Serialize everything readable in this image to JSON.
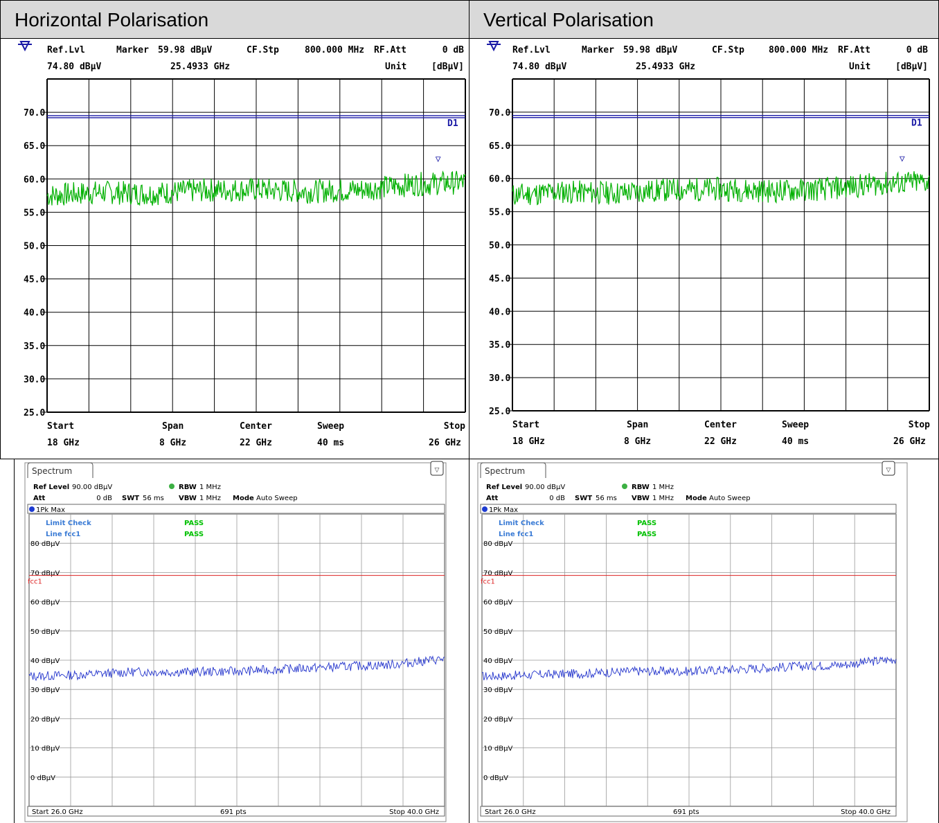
{
  "headers": {
    "left": "Horizontal Polarisation",
    "right": "Vertical Polarisation"
  },
  "upper_panel": {
    "ref_lvl_label": "Ref.Lvl",
    "ref_lvl_value": "74.80 dBµV",
    "marker_label": "Marker",
    "marker_level": "59.98 dBµV",
    "marker_freq": "25.4933 GHz",
    "cf_stp_label": "CF.Stp",
    "cf_stp_value": "800.000 MHz",
    "rf_att_label": "RF.Att",
    "rf_att_value": "0 dB",
    "unit_label": "Unit",
    "unit_value": "[dBµV]",
    "line_label": "D1",
    "marker_symbol": "▽",
    "start_label": "Start",
    "start_value": "18 GHz",
    "span_label": "Span",
    "span_value": "8 GHz",
    "center_label": "Center",
    "center_value": "22 GHz",
    "sweep_label": "Sweep",
    "sweep_value": "40 ms",
    "stop_label": "Stop",
    "stop_value": "26 GHz",
    "y_ticks": [
      "70.0",
      "65.0",
      "60.0",
      "55.0",
      "50.0",
      "45.0",
      "40.0",
      "35.0",
      "30.0",
      "25.0"
    ]
  },
  "lower_panel": {
    "tab_label": "Spectrum",
    "ref_level_label": "Ref Level",
    "ref_level_value": "90.00 dBµV",
    "rbw_label": "RBW",
    "rbw_value": "1 MHz",
    "att_label": "Att",
    "att_value": "0 dB",
    "swt_label": "SWT",
    "swt_value": "56 ms",
    "vbw_label": "VBW",
    "vbw_value": "1 MHz",
    "mode_label": "Mode",
    "mode_value": "Auto Sweep",
    "trace_label": "1Pk Max",
    "limit_check_label": "Limit Check",
    "limit_check_value": "PASS",
    "line_fcc_label": "Line fcc1",
    "line_fcc_value": "PASS",
    "limit_line_label": "fcc1",
    "start": "Start 26.0 GHz",
    "pts": "691 pts",
    "stop": "Stop 40.0 GHz",
    "y_ticks": [
      "80 dBµV",
      "70 dBµV",
      "60 dBµV",
      "50 dBµV",
      "40 dBµV",
      "30 dBµV",
      "20 dBµV",
      "10 dBµV",
      "0 dBµV"
    ]
  },
  "colors": {
    "header_bg": "#d9d9d9",
    "upper_trace": "#00b000",
    "upper_limit": "#1a1aa6",
    "lower_trace": "#2233cc",
    "lower_limit": "#dd2222",
    "pass": "#00c000",
    "info_blue": "#3a7bd5"
  },
  "chart_data": [
    {
      "type": "line",
      "panel": "Horizontal Polarisation 18-26 GHz",
      "x_range_ghz": [
        18,
        26
      ],
      "ylim": [
        25,
        75
      ],
      "ylabel": "dBµV",
      "limit_line_dbuv": 69.5,
      "marker": {
        "x_ghz": 25.4933,
        "y_dbuv": 59.98
      },
      "series": [
        {
          "x": [
            18,
            19,
            20,
            21,
            22,
            23,
            24,
            25,
            26
          ],
          "values": [
            57.5,
            58.0,
            57.8,
            58.3,
            58.4,
            58.1,
            58.4,
            59.2,
            59.5
          ]
        }
      ]
    },
    {
      "type": "line",
      "panel": "Vertical Polarisation 18-26 GHz",
      "x_range_ghz": [
        18,
        26
      ],
      "ylim": [
        25,
        75
      ],
      "ylabel": "dBµV",
      "limit_line_dbuv": 69.5,
      "marker": {
        "x_ghz": 25.4933,
        "y_dbuv": 59.98
      },
      "series": [
        {
          "x": [
            18,
            19,
            20,
            21,
            22,
            23,
            24,
            25,
            26
          ],
          "values": [
            57.5,
            58.0,
            57.8,
            58.3,
            58.4,
            58.1,
            58.4,
            59.2,
            59.5
          ]
        }
      ]
    },
    {
      "type": "line",
      "panel": "Horizontal Polarisation 26-40 GHz",
      "x_range_ghz": [
        26,
        40
      ],
      "ylim": [
        -10,
        90
      ],
      "ylabel": "dBµV",
      "limit_line_dbuv": 69,
      "series": [
        {
          "x": [
            26,
            27.75,
            29.5,
            31.25,
            33,
            34.75,
            36.5,
            38.25,
            40
          ],
          "values": [
            34.5,
            35.0,
            36.0,
            36.0,
            36.2,
            37.0,
            37.8,
            38.5,
            40.5
          ]
        }
      ]
    },
    {
      "type": "line",
      "panel": "Vertical Polarisation 26-40 GHz",
      "x_range_ghz": [
        26,
        40
      ],
      "ylim": [
        -10,
        90
      ],
      "ylabel": "dBµV",
      "limit_line_dbuv": 69,
      "series": [
        {
          "x": [
            26,
            27.75,
            29.5,
            31.25,
            33,
            34.75,
            36.5,
            38.25,
            40
          ],
          "values": [
            34.5,
            35.0,
            35.5,
            36.3,
            36.2,
            37.0,
            37.8,
            38.5,
            40.5
          ]
        }
      ]
    }
  ]
}
